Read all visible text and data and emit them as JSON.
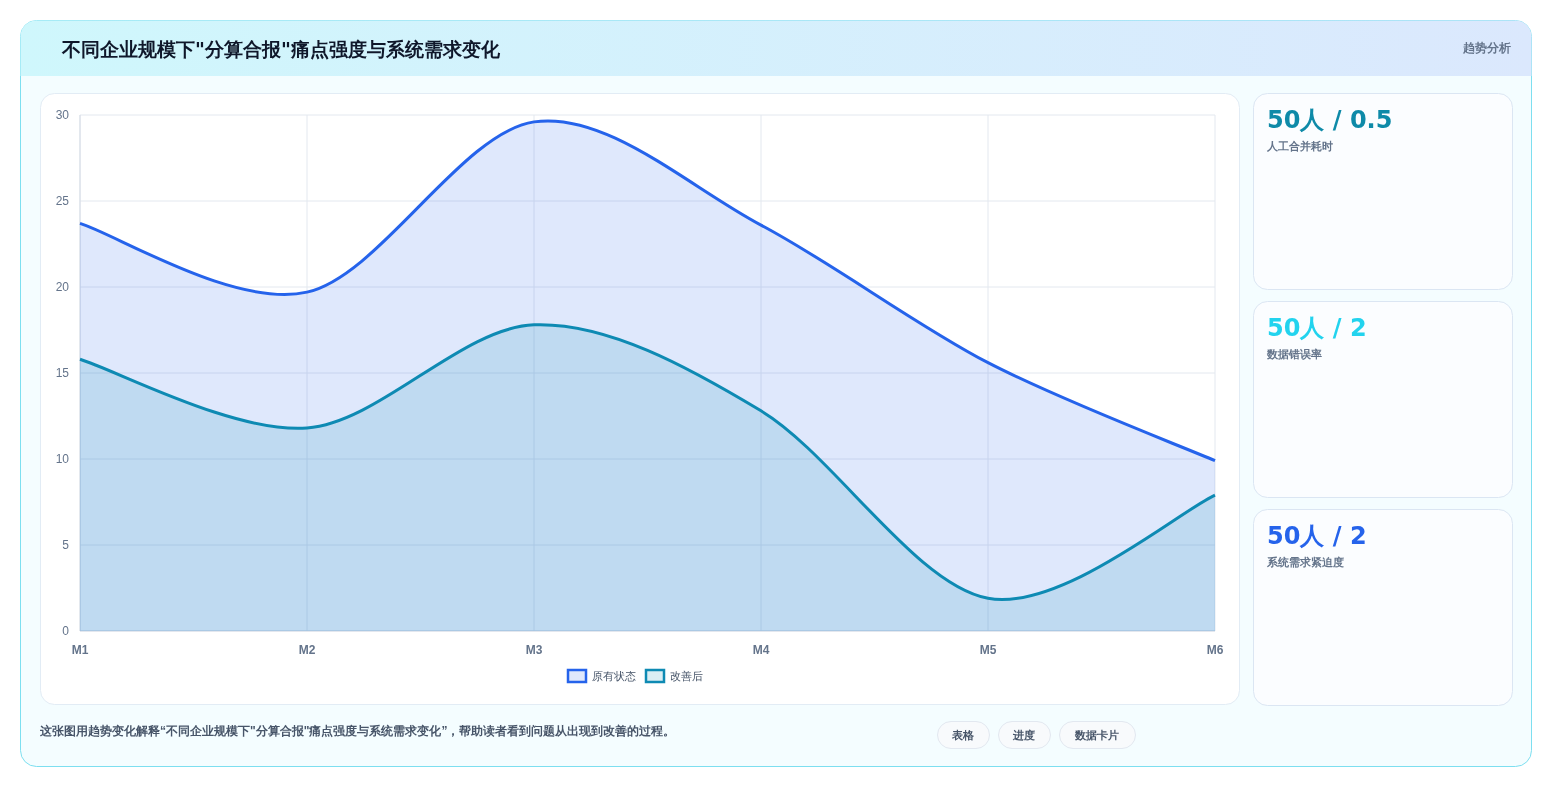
{
  "chart_data": [
    {
      "type": "area",
      "title": "不同企业规模下\"分算合报\"痛点强度与系统需求变化",
      "categories": [
        "M1",
        "M2",
        "M3",
        "M4",
        "M5",
        "M6"
      ],
      "series": [
        {
          "name": "原有状态",
          "color": "#2563eb",
          "values": [
            23.7,
            19.7,
            29.6,
            23.6,
            15.6,
            9.9
          ]
        },
        {
          "name": "改善后",
          "color": "#0e8ab3",
          "values": [
            15.8,
            11.8,
            17.8,
            12.8,
            1.9,
            7.9
          ]
        }
      ],
      "ylim": [
        0,
        30
      ],
      "yticks": [
        0,
        5,
        10,
        15,
        20,
        25,
        30
      ],
      "grid": true,
      "legend": "bottom",
      "annotations": [
        "趋势分析",
        "这张图用趋势变化解释“不同企业规模下\"分算合报\"痛点强度与系统需求变化”，帮助读者看到问题从出现到改善的过程。",
        "表格",
        "进度",
        "数据卡片"
      ]
    },
    {
      "type": "other",
      "annotations": [
        "50人 / 0.5",
        "人工合并耗时",
        "50人 / 2",
        "数据错误率",
        "50人 / 2",
        "系统需求紧迫度"
      ]
    }
  ]
}
